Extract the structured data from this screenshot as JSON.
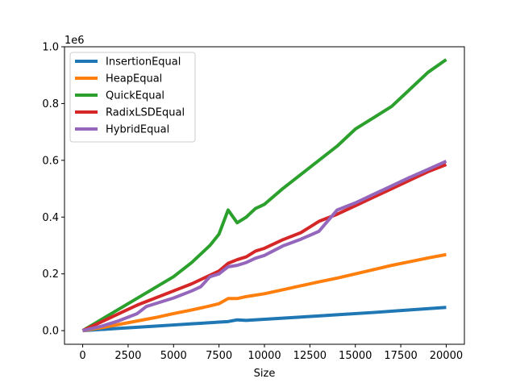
{
  "chart_data": {
    "type": "line",
    "xlabel": "Size",
    "ylabel": "",
    "offset_label": "1e6",
    "xlim": [
      -1000,
      21000
    ],
    "ylim": [
      -0.048,
      1.0
    ],
    "xticks": [
      0,
      2500,
      5000,
      7500,
      10000,
      12500,
      15000,
      17500,
      20000
    ],
    "xtick_labels": [
      "0",
      "2500",
      "5000",
      "7500",
      "10000",
      "12500",
      "15000",
      "17500",
      "20000"
    ],
    "yticks": [
      0.0,
      0.2,
      0.4,
      0.6,
      0.8,
      1.0
    ],
    "ytick_labels": [
      "0.0",
      "0.2",
      "0.4",
      "0.6",
      "0.8",
      "1.0"
    ],
    "grid": false,
    "legend_position": "upper-left",
    "series": [
      {
        "name": "InsertionEqual",
        "color": "#1f77b4",
        "x": [
          0,
          1000,
          2000,
          3000,
          4000,
          5000,
          6000,
          7000,
          7500,
          8000,
          8500,
          9000,
          10000,
          12000,
          14000,
          16000,
          18000,
          20000
        ],
        "y": [
          0.0,
          0.004,
          0.008,
          0.012,
          0.016,
          0.02,
          0.024,
          0.028,
          0.03,
          0.032,
          0.038,
          0.036,
          0.04,
          0.048,
          0.056,
          0.064,
          0.073,
          0.082
        ]
      },
      {
        "name": "HeapEqual",
        "color": "#ff7f0e",
        "x": [
          0,
          1000,
          2000,
          3000,
          4000,
          5000,
          6000,
          7000,
          7500,
          8000,
          8500,
          9000,
          10000,
          11000,
          12000,
          13000,
          14000,
          15000,
          16000,
          17000,
          18000,
          19000,
          20000
        ],
        "y": [
          0.0,
          0.01,
          0.022,
          0.034,
          0.046,
          0.06,
          0.073,
          0.087,
          0.095,
          0.113,
          0.113,
          0.12,
          0.13,
          0.144,
          0.158,
          0.172,
          0.185,
          0.2,
          0.215,
          0.23,
          0.243,
          0.256,
          0.268
        ]
      },
      {
        "name": "QuickEqual",
        "color": "#2ca02c",
        "x": [
          0,
          1000,
          2000,
          3000,
          4000,
          5000,
          6000,
          7000,
          7500,
          8000,
          8500,
          9000,
          9500,
          10000,
          11000,
          12000,
          13000,
          14000,
          15000,
          16000,
          17000,
          18000,
          19000,
          20000
        ],
        "y": [
          0.0,
          0.038,
          0.076,
          0.114,
          0.152,
          0.19,
          0.24,
          0.3,
          0.34,
          0.425,
          0.38,
          0.4,
          0.43,
          0.445,
          0.5,
          0.55,
          0.6,
          0.65,
          0.71,
          0.75,
          0.79,
          0.85,
          0.91,
          0.955
        ]
      },
      {
        "name": "RadixLSDEqual",
        "color": "#d62728",
        "x": [
          0,
          1000,
          2000,
          3000,
          4000,
          5000,
          6000,
          7000,
          7500,
          8000,
          8500,
          9000,
          9500,
          10000,
          11000,
          12000,
          13000,
          14000,
          15000,
          16000,
          17000,
          18000,
          19000,
          20000
        ],
        "y": [
          0.0,
          0.03,
          0.06,
          0.09,
          0.115,
          0.14,
          0.165,
          0.195,
          0.21,
          0.237,
          0.25,
          0.26,
          0.28,
          0.29,
          0.32,
          0.345,
          0.385,
          0.41,
          0.44,
          0.47,
          0.5,
          0.53,
          0.56,
          0.585
        ]
      },
      {
        "name": "HybridEqual",
        "color": "#9467bd",
        "x": [
          0,
          1000,
          2000,
          3000,
          3500,
          4000,
          5000,
          6000,
          6500,
          7000,
          7500,
          8000,
          8500,
          9000,
          9500,
          10000,
          11000,
          12000,
          13000,
          14000,
          15000,
          16000,
          17000,
          18000,
          19000,
          20000
        ],
        "y": [
          0.0,
          0.015,
          0.035,
          0.06,
          0.085,
          0.095,
          0.115,
          0.14,
          0.155,
          0.19,
          0.2,
          0.225,
          0.23,
          0.24,
          0.255,
          0.265,
          0.298,
          0.322,
          0.35,
          0.425,
          0.45,
          0.48,
          0.51,
          0.54,
          0.568,
          0.597
        ]
      }
    ]
  }
}
